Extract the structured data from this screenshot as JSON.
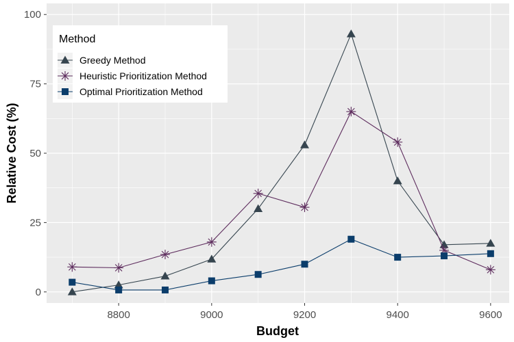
{
  "chart_data": {
    "type": "line",
    "title": "",
    "xlabel": "Budget",
    "ylabel": "Relative Cost (%)",
    "x": [
      8700,
      8800,
      8900,
      9000,
      9100,
      9200,
      9300,
      9400,
      9500,
      9600
    ],
    "xlim": [
      8645,
      9640
    ],
    "ylim": [
      -4,
      104
    ],
    "x_ticks": [
      8800,
      9000,
      9200,
      9400,
      9600
    ],
    "y_ticks": [
      0,
      25,
      50,
      75,
      100
    ],
    "grid": true,
    "legend": {
      "title": "Method",
      "placement": "top-left"
    },
    "series": [
      {
        "name": "Greedy Method",
        "marker": "triangle",
        "color": "#36454f",
        "values": [
          0,
          2.5,
          5.7,
          11.8,
          30,
          53,
          93,
          40,
          17,
          17.5
        ]
      },
      {
        "name": "Heuristic Prioritization Method",
        "marker": "asterisk",
        "color": "#5e2d5e",
        "values": [
          9,
          8.7,
          13.5,
          18,
          35.5,
          30.5,
          65,
          54,
          15,
          8
        ]
      },
      {
        "name": "Optimal Prioritization Method",
        "marker": "square",
        "color": "#0b3d6b",
        "values": [
          3.5,
          0.7,
          0.7,
          4,
          6.3,
          10,
          19,
          12.5,
          13,
          13.8
        ]
      }
    ]
  }
}
